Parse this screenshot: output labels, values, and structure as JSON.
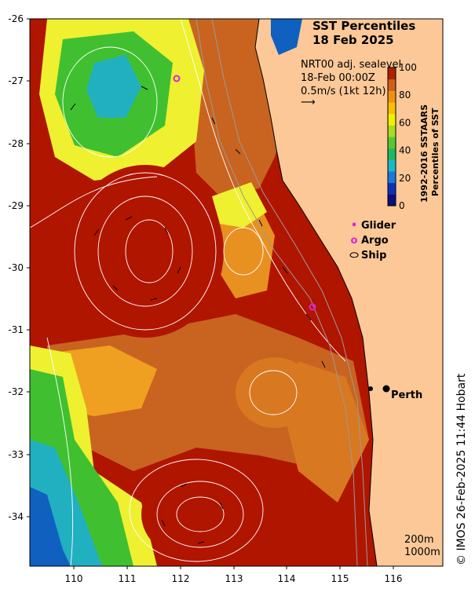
{
  "title": {
    "line1": "SST Percentiles",
    "line2": "18 Feb 2025"
  },
  "vector_info": {
    "line1": "NRT00 adj. sealevel",
    "line2": "18-Feb 00:00Z",
    "line3": "0.5m/s (1kt 12h)"
  },
  "colorbar": {
    "title_line1": "1992-2016 SSTAARS",
    "title_line2": "Percentiles of SST",
    "ticks": [
      "0",
      "20",
      "40",
      "60",
      "80",
      "100"
    ],
    "colors": [
      "#08107a",
      "#1030b8",
      "#1a78d8",
      "#1ab8c8",
      "#20b860",
      "#58c830",
      "#a8dc20",
      "#f0f000",
      "#f8c000",
      "#f09010",
      "#d06018",
      "#b02000"
    ]
  },
  "legend": {
    "glider": "Glider",
    "argo": "Argo",
    "ship": "Ship"
  },
  "place": {
    "city": "Perth"
  },
  "depth_contours": {
    "shallow": "200m",
    "deep": "1000m"
  },
  "credit": "© IMOS 26-Feb-2025 11:44 Hobart",
  "axes": {
    "y_ticks": [
      "-26",
      "-27",
      "-28",
      "-29",
      "-30",
      "-31",
      "-32",
      "-33",
      "-34"
    ],
    "x_ticks": [
      "110",
      "111",
      "112",
      "113",
      "114",
      "115",
      "116"
    ]
  },
  "colors": {
    "land": "#fcc898",
    "very_warm": "#b01500",
    "warm": "#c86420",
    "orange": "#f0a020",
    "yellow": "#eef030",
    "green": "#40c030",
    "cyan": "#20b0c0",
    "blue": "#1060c0"
  }
}
